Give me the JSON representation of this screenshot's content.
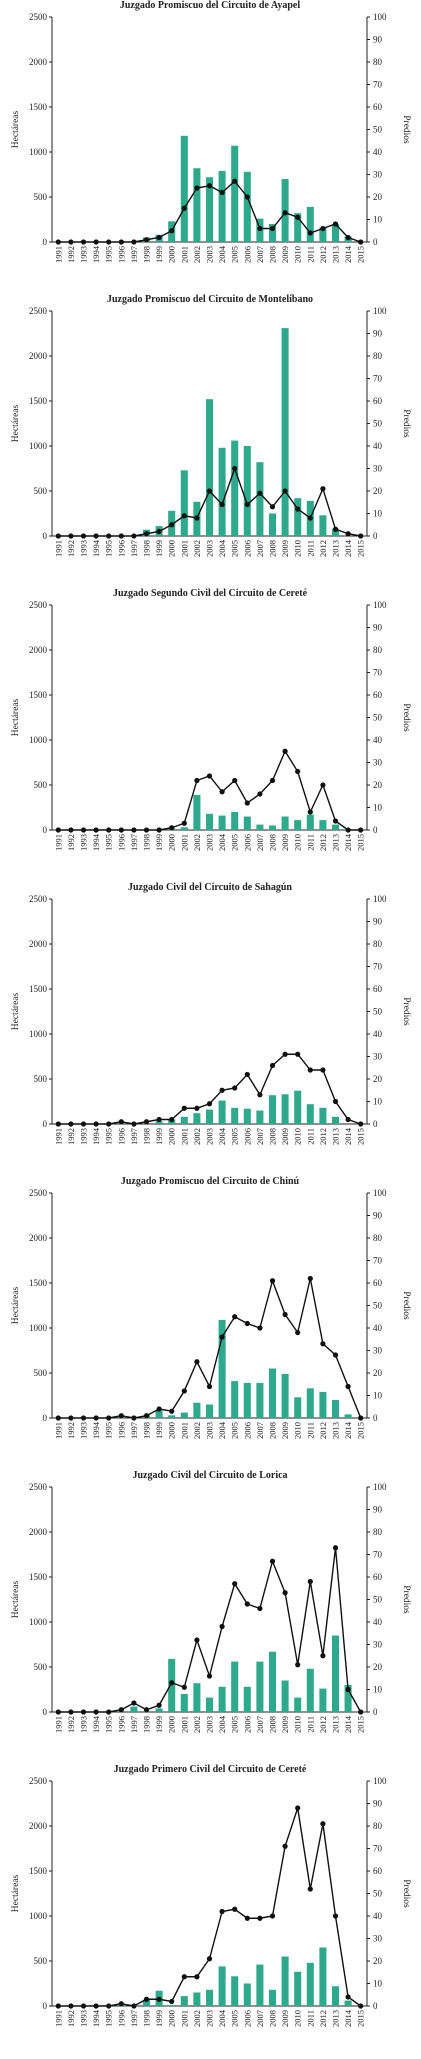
{
  "style": {
    "bar_color": "#2fa98c",
    "line_color": "#111111",
    "axis_color": "#222222"
  },
  "chart_data": [
    {
      "type": "bar",
      "title": "Juzgado Promiscuo del Circuito de Ayapel",
      "ylabel": "Hectáreas",
      "y2label": "Predios",
      "ylim": [
        0,
        2500
      ],
      "y2lim": [
        0,
        100
      ],
      "yticks": [
        0,
        500,
        1000,
        1500,
        2000,
        2500
      ],
      "y2ticks": [
        0,
        10,
        20,
        30,
        40,
        50,
        60,
        70,
        80,
        90,
        100
      ],
      "categories": [
        "1991",
        "1992",
        "1993",
        "1994",
        "1995",
        "1996",
        "1997",
        "1998",
        "1999",
        "2000",
        "2001",
        "2002",
        "2003",
        "2004",
        "2005",
        "2006",
        "2007",
        "2008",
        "2009",
        "2010",
        "2011",
        "2012",
        "2013",
        "2014",
        "2015"
      ],
      "series": [
        {
          "kind": "bar",
          "axis": "left",
          "values": [
            0,
            0,
            0,
            0,
            0,
            0,
            0,
            50,
            80,
            230,
            1180,
            820,
            720,
            790,
            1070,
            780,
            260,
            200,
            700,
            320,
            390,
            160,
            200,
            60,
            0
          ]
        },
        {
          "kind": "line",
          "axis": "right",
          "values": [
            0,
            0,
            0,
            0,
            0,
            0,
            0,
            1,
            2,
            5,
            15,
            24,
            25,
            22,
            27,
            20,
            6,
            6,
            13,
            11,
            4,
            6,
            8,
            2,
            0
          ]
        }
      ]
    },
    {
      "type": "bar",
      "title": "Juzgado Promiscuo del Circuito de Montelíbano",
      "ylabel": "Hectáreas",
      "y2label": "Predios",
      "ylim": [
        0,
        2500
      ],
      "y2lim": [
        0,
        100
      ],
      "yticks": [
        0,
        500,
        1000,
        1500,
        2000,
        2500
      ],
      "y2ticks": [
        0,
        10,
        20,
        30,
        40,
        50,
        60,
        70,
        80,
        90,
        100
      ],
      "categories": [
        "1991",
        "1992",
        "1993",
        "1994",
        "1995",
        "1996",
        "1997",
        "1998",
        "1999",
        "2000",
        "2001",
        "2002",
        "2003",
        "2004",
        "2005",
        "2006",
        "2007",
        "2008",
        "2009",
        "2010",
        "2011",
        "2012",
        "2013",
        "2014",
        "2015"
      ],
      "series": [
        {
          "kind": "bar",
          "axis": "left",
          "values": [
            0,
            0,
            0,
            0,
            0,
            0,
            0,
            70,
            110,
            280,
            730,
            380,
            1520,
            980,
            1060,
            1000,
            820,
            250,
            2310,
            420,
            390,
            230,
            80,
            0,
            0
          ]
        },
        {
          "kind": "line",
          "axis": "right",
          "values": [
            0,
            0,
            0,
            0,
            0,
            0,
            0,
            1,
            2,
            5,
            9,
            8,
            20,
            14,
            30,
            14,
            19,
            13,
            20,
            12,
            8,
            21,
            3,
            1,
            0
          ]
        }
      ]
    },
    {
      "type": "bar",
      "title": "Juzgado Segundo Civil del Circuito de Cereté",
      "ylabel": "Hectáreas",
      "y2label": "Predios",
      "ylim": [
        0,
        2500
      ],
      "y2lim": [
        0,
        100
      ],
      "yticks": [
        0,
        500,
        1000,
        1500,
        2000,
        2500
      ],
      "y2ticks": [
        0,
        10,
        20,
        30,
        40,
        50,
        60,
        70,
        80,
        90,
        100
      ],
      "categories": [
        "1991",
        "1992",
        "1993",
        "1994",
        "1995",
        "1996",
        "1997",
        "1998",
        "1999",
        "2000",
        "2001",
        "2002",
        "2003",
        "2004",
        "2005",
        "2006",
        "2007",
        "2008",
        "2009",
        "2010",
        "2011",
        "2012",
        "2013",
        "2014",
        "2015"
      ],
      "series": [
        {
          "kind": "bar",
          "axis": "left",
          "values": [
            0,
            0,
            0,
            0,
            0,
            0,
            0,
            0,
            0,
            20,
            30,
            390,
            180,
            160,
            200,
            150,
            60,
            50,
            150,
            110,
            170,
            110,
            60,
            10,
            0
          ]
        },
        {
          "kind": "line",
          "axis": "right",
          "values": [
            0,
            0,
            0,
            0,
            0,
            0,
            0,
            0,
            0,
            1,
            3,
            22,
            24,
            17,
            22,
            12,
            16,
            22,
            35,
            26,
            8,
            20,
            4,
            0,
            0
          ]
        }
      ]
    },
    {
      "type": "bar",
      "title": "Juzgado Civil del Circuito de Sahagún",
      "ylabel": "Hectáreas",
      "y2label": "Predios",
      "ylim": [
        0,
        2500
      ],
      "y2lim": [
        0,
        100
      ],
      "yticks": [
        0,
        500,
        1000,
        1500,
        2000,
        2500
      ],
      "y2ticks": [
        0,
        10,
        20,
        30,
        40,
        50,
        60,
        70,
        80,
        90,
        100
      ],
      "categories": [
        "1991",
        "1992",
        "1993",
        "1994",
        "1995",
        "1996",
        "1997",
        "1998",
        "1999",
        "2000",
        "2001",
        "2002",
        "2003",
        "2004",
        "2005",
        "2006",
        "2007",
        "2008",
        "2009",
        "2010",
        "2011",
        "2012",
        "2013",
        "2014",
        "2015"
      ],
      "series": [
        {
          "kind": "bar",
          "axis": "left",
          "values": [
            0,
            0,
            0,
            0,
            0,
            20,
            10,
            0,
            30,
            50,
            80,
            120,
            160,
            260,
            180,
            170,
            150,
            320,
            330,
            370,
            220,
            180,
            80,
            0,
            0
          ]
        },
        {
          "kind": "line",
          "axis": "right",
          "values": [
            0,
            0,
            0,
            0,
            0,
            1,
            0,
            1,
            2,
            2,
            7,
            7,
            9,
            15,
            16,
            22,
            13,
            26,
            31,
            31,
            24,
            24,
            10,
            2,
            0
          ]
        }
      ]
    },
    {
      "type": "bar",
      "title": "Juzgado Promiscuo del Circuito de Chinú",
      "ylabel": "Hectáreas",
      "y2label": "Predios",
      "ylim": [
        0,
        2500
      ],
      "y2lim": [
        0,
        100
      ],
      "yticks": [
        0,
        500,
        1000,
        1500,
        2000,
        2500
      ],
      "y2ticks": [
        0,
        10,
        20,
        30,
        40,
        50,
        60,
        70,
        80,
        90,
        100
      ],
      "categories": [
        "1991",
        "1992",
        "1993",
        "1994",
        "1995",
        "1996",
        "1997",
        "1998",
        "1999",
        "2000",
        "2001",
        "2002",
        "2003",
        "2004",
        "2005",
        "2006",
        "2007",
        "2008",
        "2009",
        "2010",
        "2011",
        "2012",
        "2013",
        "2014",
        "2015"
      ],
      "series": [
        {
          "kind": "bar",
          "axis": "left",
          "values": [
            0,
            0,
            0,
            0,
            0,
            20,
            10,
            30,
            80,
            30,
            60,
            170,
            150,
            1090,
            410,
            390,
            390,
            550,
            490,
            230,
            330,
            290,
            200,
            40,
            0
          ]
        },
        {
          "kind": "line",
          "axis": "right",
          "values": [
            0,
            0,
            0,
            0,
            0,
            1,
            0,
            1,
            4,
            3,
            12,
            25,
            14,
            36,
            45,
            42,
            40,
            61,
            46,
            38,
            62,
            33,
            28,
            14,
            0
          ]
        }
      ]
    },
    {
      "type": "bar",
      "title": "Juzgado Civil del Circuito de Lorica",
      "ylabel": "Hectáreas",
      "y2label": "Predios",
      "ylim": [
        0,
        2500
      ],
      "y2lim": [
        0,
        100
      ],
      "yticks": [
        0,
        500,
        1000,
        1500,
        2000,
        2500
      ],
      "y2ticks": [
        0,
        10,
        20,
        30,
        40,
        50,
        60,
        70,
        80,
        90,
        100
      ],
      "categories": [
        "1991",
        "1992",
        "1993",
        "1994",
        "1995",
        "1996",
        "1997",
        "1998",
        "1999",
        "2000",
        "2001",
        "2002",
        "2003",
        "2004",
        "2005",
        "2006",
        "2007",
        "2008",
        "2009",
        "2010",
        "2011",
        "2012",
        "2013",
        "2014",
        "2015"
      ],
      "series": [
        {
          "kind": "bar",
          "axis": "left",
          "values": [
            0,
            0,
            0,
            0,
            0,
            10,
            60,
            10,
            40,
            590,
            200,
            320,
            160,
            280,
            560,
            280,
            560,
            670,
            350,
            160,
            480,
            260,
            850,
            300,
            0
          ]
        },
        {
          "kind": "line",
          "axis": "right",
          "values": [
            0,
            0,
            0,
            0,
            0,
            1,
            4,
            1,
            3,
            13,
            11,
            32,
            16,
            38,
            57,
            48,
            46,
            67,
            53,
            21,
            58,
            25,
            73,
            10,
            0
          ]
        }
      ]
    },
    {
      "type": "bar",
      "title": "Juzgado Primero Civil del Circuito de Cereté",
      "ylabel": "Hectáreas",
      "y2label": "Predios",
      "ylim": [
        0,
        2500
      ],
      "y2lim": [
        0,
        100
      ],
      "yticks": [
        0,
        500,
        1000,
        1500,
        2000,
        2500
      ],
      "y2ticks": [
        0,
        10,
        20,
        30,
        40,
        50,
        60,
        70,
        80,
        90,
        100
      ],
      "categories": [
        "1991",
        "1992",
        "1993",
        "1994",
        "1995",
        "1996",
        "1997",
        "1998",
        "1999",
        "2000",
        "2001",
        "2002",
        "2003",
        "2004",
        "2005",
        "2006",
        "2007",
        "2008",
        "2009",
        "2010",
        "2011",
        "2012",
        "2013",
        "2014",
        "2015"
      ],
      "series": [
        {
          "kind": "bar",
          "axis": "left",
          "values": [
            0,
            0,
            0,
            0,
            0,
            10,
            0,
            70,
            170,
            10,
            110,
            150,
            180,
            440,
            330,
            250,
            460,
            180,
            550,
            380,
            480,
            650,
            220,
            60,
            0
          ]
        },
        {
          "kind": "line",
          "axis": "right",
          "values": [
            0,
            0,
            0,
            0,
            0,
            1,
            0,
            3,
            3,
            2,
            13,
            13,
            21,
            42,
            43,
            39,
            39,
            40,
            71,
            88,
            52,
            81,
            40,
            4,
            0
          ]
        }
      ]
    }
  ]
}
